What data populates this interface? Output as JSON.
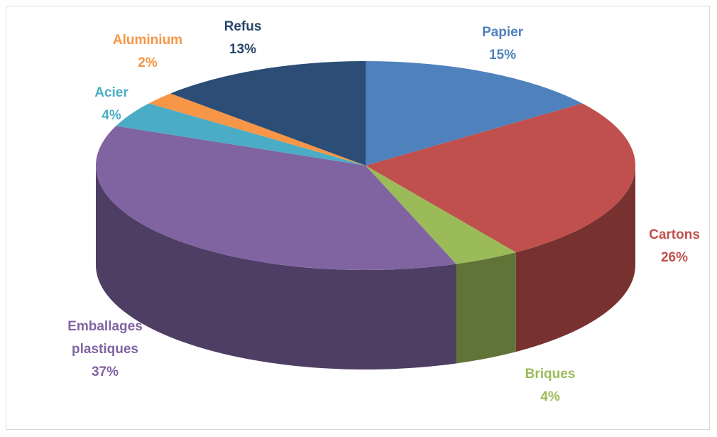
{
  "chart_data": {
    "type": "pie3d",
    "categories": [
      "Papier",
      "Cartons",
      "Briques",
      "Emballages plastiques",
      "Acier",
      "Aluminium",
      "Refus"
    ],
    "values": [
      15,
      26,
      4,
      37,
      4,
      2,
      13
    ],
    "value_labels": [
      "15%",
      "26%",
      "4%",
      "37%",
      "4%",
      "2%",
      "13%"
    ],
    "colors": [
      "#4f81bd",
      "#c0504d",
      "#9bbb59",
      "#8064a2",
      "#4bacc6",
      "#f79646",
      "#2c4d75"
    ]
  }
}
